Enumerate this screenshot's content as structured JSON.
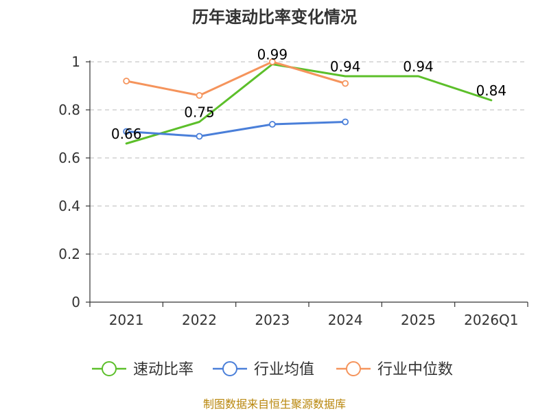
{
  "chart_data": {
    "type": "line",
    "title": "历年速动比率变化情况",
    "categories": [
      "2021",
      "2022",
      "2023",
      "2024",
      "2025",
      "2026Q1"
    ],
    "ylim": [
      0,
      1
    ],
    "yticks": [
      0,
      0.2,
      0.4,
      0.6,
      0.8,
      1
    ],
    "ytick_labels": [
      "0",
      "0.2",
      "0.4",
      "0.6",
      "0.8",
      "1"
    ],
    "grid": true,
    "xlabel": "",
    "ylabel": "",
    "legend_position": "bottom",
    "series": [
      {
        "key": "quick-ratio",
        "name": "速动比率",
        "color": "#5cbf2a",
        "values": [
          0.66,
          0.75,
          0.99,
          0.94,
          0.94,
          0.84
        ],
        "data_labels": [
          "0.66",
          "0.75",
          "0.99",
          "0.94",
          "0.94",
          "0.84"
        ],
        "show_points": false
      },
      {
        "key": "industry-average",
        "name": "行业均值",
        "color": "#4a7fd9",
        "values": [
          0.71,
          0.69,
          0.74,
          0.75,
          null,
          null
        ],
        "show_points": true
      },
      {
        "key": "industry-median",
        "name": "行业中位数",
        "color": "#f5945c",
        "values": [
          0.92,
          0.86,
          1.0,
          0.91,
          null,
          null
        ],
        "show_points": true
      }
    ]
  },
  "footer": {
    "source": "制图数据来自恒生聚源数据库"
  }
}
